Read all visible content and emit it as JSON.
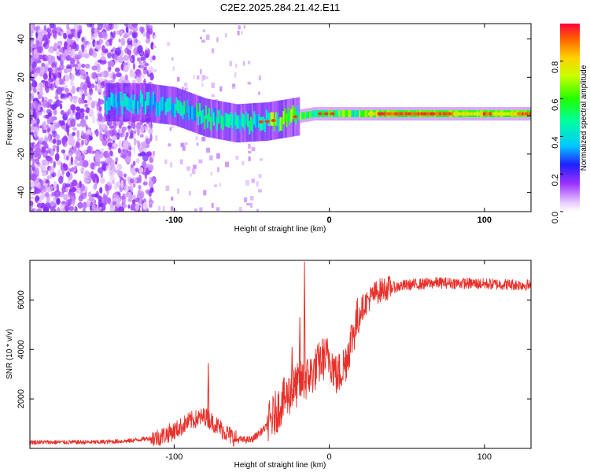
{
  "title": "C2E2.2025.284.21.42.E11",
  "colors": {
    "line": "#e8302a",
    "frame": "#000000",
    "background": "#ffffff"
  },
  "chart_data": [
    {
      "type": "heatmap",
      "name": "spectrogram",
      "xlabel": "Height of straight line (km)",
      "ylabel": "Frequency (Hz)",
      "xlim": [
        -193,
        130
      ],
      "ylim": [
        -50,
        48
      ],
      "xticks": [
        -100,
        0,
        100
      ],
      "xtick_labels": [
        "-100",
        "0",
        "100"
      ],
      "yticks": [
        -40,
        -20,
        0,
        20,
        40
      ],
      "ytick_labels": [
        "-40",
        "-20",
        "0",
        "20",
        "40"
      ],
      "ridge": [
        {
          "x": -140,
          "f": 7
        },
        {
          "x": -120,
          "f": 7
        },
        {
          "x": -100,
          "f": 5
        },
        {
          "x": -80,
          "f": -1
        },
        {
          "x": -60,
          "f": -4
        },
        {
          "x": -40,
          "f": -3
        },
        {
          "x": -25,
          "f": -1
        },
        {
          "x": -10,
          "f": 1
        },
        {
          "x": 0,
          "f": 1
        },
        {
          "x": 30,
          "f": 1
        },
        {
          "x": 80,
          "f": 1
        },
        {
          "x": 130,
          "f": 1
        }
      ],
      "colorbar": {
        "label": "Normalized spectral amplitude",
        "range": [
          0,
          1
        ],
        "ticks": [
          0.0,
          0.2,
          0.4,
          0.6,
          0.8
        ],
        "tick_labels": [
          "0.0",
          "0.2",
          "0.4",
          "0.6",
          "0.8"
        ]
      }
    },
    {
      "type": "line",
      "name": "snr",
      "xlabel": "Height of straight line (km)",
      "ylabel": "SNR (10 * v/v)",
      "xlim": [
        -193,
        130
      ],
      "ylim": [
        0,
        7600
      ],
      "xticks": [
        -100,
        0,
        100
      ],
      "xtick_labels": [
        "-100",
        "0",
        "100"
      ],
      "yticks": [
        2000,
        4000,
        6000
      ],
      "ytick_labels": [
        "2000",
        "4000",
        "6000"
      ],
      "trend": {
        "x": [
          -193,
          -150,
          -130,
          -110,
          -100,
          -90,
          -80,
          -70,
          -60,
          -50,
          -40,
          -30,
          -20,
          -15,
          -10,
          -5,
          0,
          5,
          10,
          15,
          20,
          25,
          30,
          35,
          40,
          50,
          70,
          100,
          130
        ],
        "y": [
          250,
          250,
          300,
          450,
          700,
          1100,
          1300,
          800,
          350,
          350,
          900,
          1900,
          2600,
          2800,
          3100,
          3600,
          3700,
          2900,
          3400,
          4600,
          5600,
          6000,
          6300,
          6450,
          6500,
          6600,
          6700,
          6650,
          6600
        ]
      },
      "spikes": [
        {
          "x": -16,
          "y": 7550
        },
        {
          "x": -19,
          "y": 5300
        },
        {
          "x": -78,
          "y": 3450
        },
        {
          "x": -24,
          "y": 4100
        }
      ]
    }
  ]
}
